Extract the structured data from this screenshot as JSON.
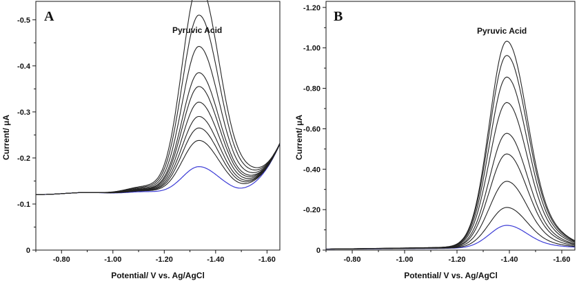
{
  "chart_data": [
    {
      "type": "line",
      "panel": "A",
      "annotation": "Pyruvic Acid",
      "xlabel": "Potential/ V vs. Ag/AgCl",
      "ylabel": "Current/ μA",
      "xlim": [
        -0.7,
        -1.65
      ],
      "ylim": [
        0,
        -0.54
      ],
      "xticks": [
        -0.8,
        -1.0,
        -1.2,
        -1.4,
        -1.6
      ],
      "xtick_labels": [
        "-0.80",
        "-1.00",
        "-1.20",
        "-1.40",
        "-1.60"
      ],
      "yticks": [
        0,
        -0.1,
        -0.2,
        -0.3,
        -0.4,
        -0.5
      ],
      "ytick_labels": [
        "0",
        "-0.1",
        "-0.2",
        "-0.3",
        "-0.4",
        "-0.5"
      ],
      "peak_potential": -1.335,
      "series": [
        {
          "color": "#3b3bd6",
          "peak": -0.061
        },
        {
          "color": "#222222",
          "peak": -0.118
        },
        {
          "color": "#222222",
          "peak": -0.145
        },
        {
          "color": "#222222",
          "peak": -0.17
        },
        {
          "color": "#222222",
          "peak": -0.201
        },
        {
          "color": "#222222",
          "peak": -0.235
        },
        {
          "color": "#222222",
          "peak": -0.265
        },
        {
          "color": "#222222",
          "peak": -0.322
        },
        {
          "color": "#222222",
          "peak": -0.39
        },
        {
          "color": "#222222",
          "peak": -0.458
        }
      ]
    },
    {
      "type": "line",
      "panel": "B",
      "annotation": "Pyruvic Acid",
      "xlabel": "Potential/ V vs. Ag/AgCl",
      "ylabel": "Current/ μA",
      "xlim": [
        -0.7,
        -1.65
      ],
      "ylim": [
        0,
        -1.23
      ],
      "xticks": [
        -0.8,
        -1.0,
        -1.2,
        -1.4,
        -1.6
      ],
      "xtick_labels": [
        "-0.80",
        "-1.00",
        "-1.20",
        "-1.40",
        "-1.60"
      ],
      "yticks": [
        0,
        -0.2,
        -0.4,
        -0.6,
        -0.8,
        -1.0,
        -1.2
      ],
      "ytick_labels": [
        "0",
        "-0.20",
        "-0.40",
        "-0.60",
        "-0.80",
        "-1.00",
        "-1.20"
      ],
      "peak_potential": -1.39,
      "series": [
        {
          "color": "#3b3bd6",
          "peak": -0.112
        },
        {
          "color": "#222222",
          "peak": -0.2
        },
        {
          "color": "#222222",
          "peak": -0.328
        },
        {
          "color": "#222222",
          "peak": -0.462
        },
        {
          "color": "#222222",
          "peak": -0.563
        },
        {
          "color": "#222222",
          "peak": -0.714
        },
        {
          "color": "#222222",
          "peak": -0.839
        },
        {
          "color": "#222222",
          "peak": -0.945
        },
        {
          "color": "#222222",
          "peak": -1.015
        }
      ]
    }
  ]
}
